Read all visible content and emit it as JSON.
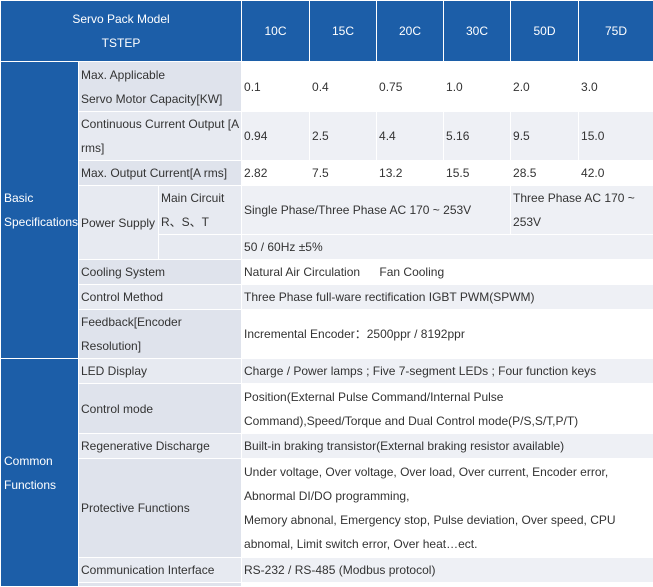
{
  "header": {
    "model_label": "Servo Pack Model",
    "model_sub": "TSTEP",
    "models": [
      "10C",
      "15C",
      "20C",
      "30C",
      "50D",
      "75D"
    ]
  },
  "basic": {
    "category": [
      "Basic",
      "Specifications"
    ],
    "max_motor_capacity": {
      "label": [
        "Max. Applicable",
        "Servo Motor Capacity[KW]"
      ],
      "values": [
        "0.1",
        "0.4",
        "0.75",
        "1.0",
        "2.0",
        "3.0"
      ]
    },
    "continuous_current": {
      "label": [
        "Continuous Current Output [A",
        "rms]"
      ],
      "values": [
        "0.94",
        "2.5",
        "4.4",
        "5.16",
        "9.5",
        "15.0"
      ]
    },
    "max_output_current": {
      "label": "Max. Output Current[A rms]",
      "values": [
        "2.82",
        "7.5",
        "13.2",
        "15.5",
        "28.5",
        "42.0"
      ]
    },
    "power_supply": {
      "label": "Power Supply",
      "sub_label": [
        "Main Circuit",
        "R、S、T"
      ],
      "single_three": "Single Phase/Three Phase AC 170 ~ 253V",
      "three_phase": [
        "Three Phase AC 170 ~",
        "253V"
      ],
      "frequency": "50 / 60Hz ±5%"
    },
    "cooling": {
      "label": "Cooling System",
      "natural": "Natural Air Circulation",
      "fan": "Fan Cooling"
    },
    "control_method": {
      "label": "Control Method",
      "value": "Three Phase full-ware rectification IGBT PWM(SPWM)"
    },
    "feedback": {
      "label": [
        "Feedback[Encoder",
        "Resolution]"
      ],
      "value": "Incremental Encoder：2500ppr / 8192ppr"
    }
  },
  "common": {
    "category": [
      "Common",
      "Functions"
    ],
    "led_display": {
      "label": "LED Display",
      "value": "Charge / Power lamps ; Five 7-segment LEDs ; Four function keys"
    },
    "control_mode": {
      "label": "Control mode",
      "value": [
        "Position(External Pulse Command/Internal Pulse",
        "Command),Speed/Torque and Dual Control mode(P/S,S/T,P/T)"
      ]
    },
    "regen": {
      "label": "Regenerative Discharge",
      "value": "Built-in braking transistor(External braking resistor available)"
    },
    "protective": {
      "label": "Protective Functions",
      "value": [
        "Under voltage, Over voltage, Over load, Over current, Encoder error,",
        "Abnormal DI/DO programming,",
        "Memory abnonal, Emergency stop, Pulse deviation, Over speed, CPU",
        "abnomal, Limit switch error, Over heat…ect."
      ]
    },
    "communication": {
      "label": "Communication Interface",
      "value": "RS-232 / RS-485 (Modbus protocol)"
    }
  }
}
